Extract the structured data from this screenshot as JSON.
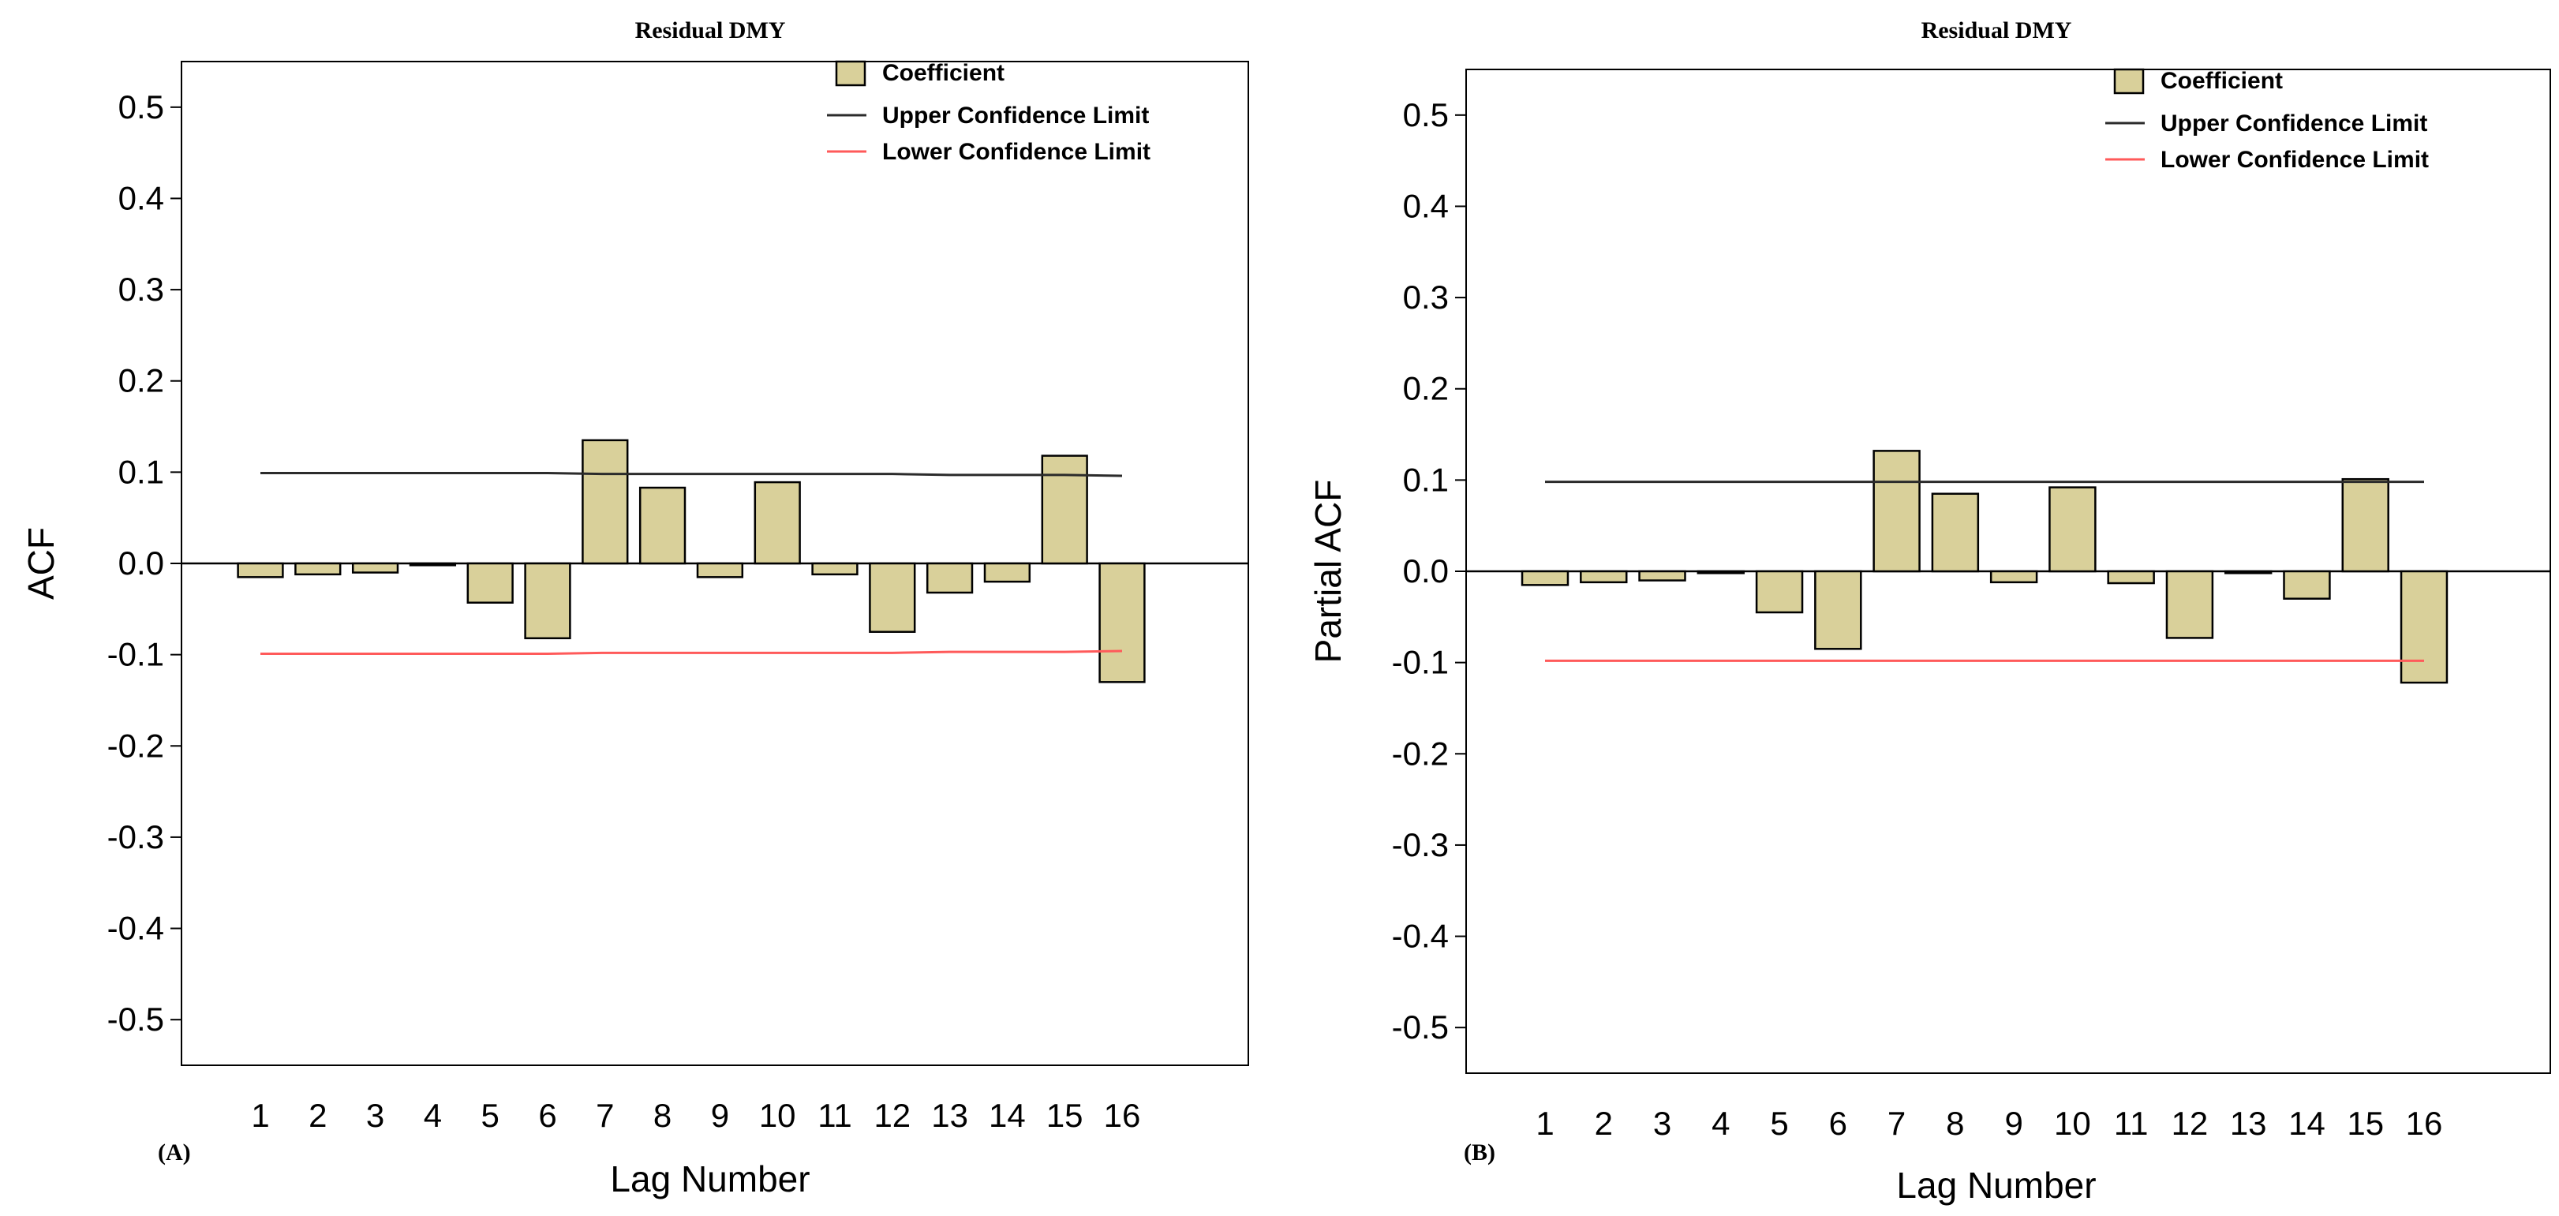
{
  "colors": {
    "bar_fill": "#D9D09A",
    "bar_stroke": "#000000",
    "upper_limit": "#2b2b2b",
    "lower_limit": "#ff5a5a",
    "zero_line": "#000000",
    "background": "#ffffff"
  },
  "chart_data": [
    {
      "type": "bar",
      "panel_label": "(A)",
      "title": "Residual DMY",
      "xlabel": "Lag Number",
      "ylabel": "ACF",
      "ylim": [
        -0.55,
        0.55
      ],
      "yticks": [
        0.5,
        0.4,
        0.3,
        0.2,
        0.1,
        0.0,
        -0.1,
        -0.2,
        -0.3,
        -0.4,
        -0.5
      ],
      "ytick_labels": [
        "0.5",
        "0.4",
        "0.3",
        "0.2",
        "0.1",
        "0.0",
        "-0.1",
        "-0.2",
        "-0.3",
        "-0.4",
        "-0.5"
      ],
      "categories": [
        "1",
        "2",
        "3",
        "4",
        "5",
        "6",
        "7",
        "8",
        "9",
        "10",
        "11",
        "12",
        "13",
        "14",
        "15",
        "16"
      ],
      "values": [
        -0.015,
        -0.012,
        -0.01,
        -0.002,
        -0.043,
        -0.082,
        0.135,
        0.083,
        -0.015,
        0.089,
        -0.012,
        -0.075,
        -0.032,
        -0.02,
        0.118,
        -0.13
      ],
      "upper_confidence_limit": [
        0.099,
        0.099,
        0.099,
        0.099,
        0.099,
        0.099,
        0.098,
        0.098,
        0.098,
        0.098,
        0.098,
        0.098,
        0.097,
        0.097,
        0.097,
        0.096
      ],
      "lower_confidence_limit": [
        -0.099,
        -0.099,
        -0.099,
        -0.099,
        -0.099,
        -0.099,
        -0.098,
        -0.098,
        -0.098,
        -0.098,
        -0.098,
        -0.098,
        -0.097,
        -0.097,
        -0.097,
        -0.096
      ],
      "legend": {
        "position": "top-right",
        "entries": [
          "Coefficient",
          "Upper Confidence Limit",
          "Lower Confidence Limit"
        ]
      }
    },
    {
      "type": "bar",
      "panel_label": "(B)",
      "title": "Residual DMY",
      "xlabel": "Lag Number",
      "ylabel": "Partial ACF",
      "ylim": [
        -0.55,
        0.55
      ],
      "yticks": [
        0.5,
        0.4,
        0.3,
        0.2,
        0.1,
        0.0,
        -0.1,
        -0.2,
        -0.3,
        -0.4,
        -0.5
      ],
      "ytick_labels": [
        "0.5",
        "0.4",
        "0.3",
        "0.2",
        "0.1",
        "0.0",
        "-0.1",
        "-0.2",
        "-0.3",
        "-0.4",
        "-0.5"
      ],
      "categories": [
        "1",
        "2",
        "3",
        "4",
        "5",
        "6",
        "7",
        "8",
        "9",
        "10",
        "11",
        "12",
        "13",
        "14",
        "15",
        "16"
      ],
      "values": [
        -0.015,
        -0.012,
        -0.01,
        -0.002,
        -0.045,
        -0.085,
        0.132,
        0.085,
        -0.012,
        0.092,
        -0.013,
        -0.073,
        -0.002,
        -0.03,
        0.101,
        -0.122
      ],
      "upper_confidence_limit": [
        0.098,
        0.098,
        0.098,
        0.098,
        0.098,
        0.098,
        0.098,
        0.098,
        0.098,
        0.098,
        0.098,
        0.098,
        0.098,
        0.098,
        0.098,
        0.098
      ],
      "lower_confidence_limit": [
        -0.098,
        -0.098,
        -0.098,
        -0.098,
        -0.098,
        -0.098,
        -0.098,
        -0.098,
        -0.098,
        -0.098,
        -0.098,
        -0.098,
        -0.098,
        -0.098,
        -0.098,
        -0.098
      ],
      "legend": {
        "position": "top-right",
        "entries": [
          "Coefficient",
          "Upper Confidence Limit",
          "Lower Confidence Limit"
        ]
      }
    }
  ]
}
